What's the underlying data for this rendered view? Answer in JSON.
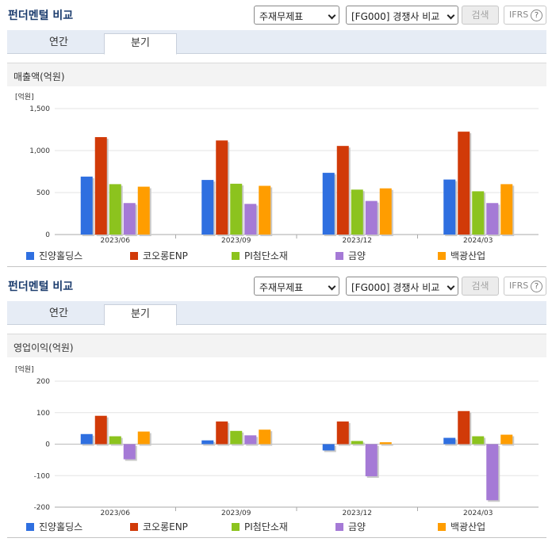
{
  "section_title": "펀더멘털 비교",
  "statement_select": "주재무제표",
  "peer_select": "[FG000] 경쟁사 비교",
  "search_label": "검색",
  "ifrs_label": "IFRS",
  "help_label": "?",
  "tabs": [
    "연간",
    "분기"
  ],
  "active_tab": 1,
  "colors": [
    "#2f6fe0",
    "#d13a08",
    "#8cc31e",
    "#a57ad6",
    "#ff9d00"
  ],
  "legend": [
    "진양홀딩스",
    "코오롱ENP",
    "PI첨단소재",
    "금양",
    "백광산업"
  ],
  "chart_data": [
    {
      "type": "bar",
      "metric_title": "매출액(억원)",
      "unit": "[억원]",
      "categories": [
        "2023/06",
        "2023/09",
        "2023/12",
        "2024/03"
      ],
      "ylim": [
        0,
        1500
      ],
      "yticks": [
        "0",
        "500",
        "1,000",
        "1,500"
      ],
      "ytick_values": [
        0,
        500,
        1000,
        1500
      ],
      "series": [
        {
          "name": "진양홀딩스",
          "values": [
            690,
            650,
            735,
            655
          ]
        },
        {
          "name": "코오롱ENP",
          "values": [
            1160,
            1120,
            1055,
            1225
          ]
        },
        {
          "name": "PI첨단소재",
          "values": [
            600,
            605,
            535,
            515
          ]
        },
        {
          "name": "금양",
          "values": [
            375,
            365,
            400,
            375
          ]
        },
        {
          "name": "백광산업",
          "values": [
            570,
            580,
            550,
            600
          ]
        }
      ]
    },
    {
      "type": "bar",
      "metric_title": "영업이익(억원)",
      "unit": "[억원]",
      "categories": [
        "2023/06",
        "2023/09",
        "2023/12",
        "2024/03"
      ],
      "ylim": [
        -200,
        200
      ],
      "yticks": [
        "-200",
        "-100",
        "0",
        "100",
        "200"
      ],
      "ytick_values": [
        -200,
        -100,
        0,
        100,
        200
      ],
      "series": [
        {
          "name": "진양홀딩스",
          "values": [
            32,
            12,
            -20,
            20
          ]
        },
        {
          "name": "코오롱ENP",
          "values": [
            90,
            72,
            72,
            105
          ]
        },
        {
          "name": "PI첨단소재",
          "values": [
            25,
            42,
            10,
            25
          ]
        },
        {
          "name": "금양",
          "values": [
            -48,
            28,
            -102,
            -178
          ]
        },
        {
          "name": "백광산업",
          "values": [
            40,
            46,
            6,
            30
          ]
        }
      ]
    }
  ]
}
